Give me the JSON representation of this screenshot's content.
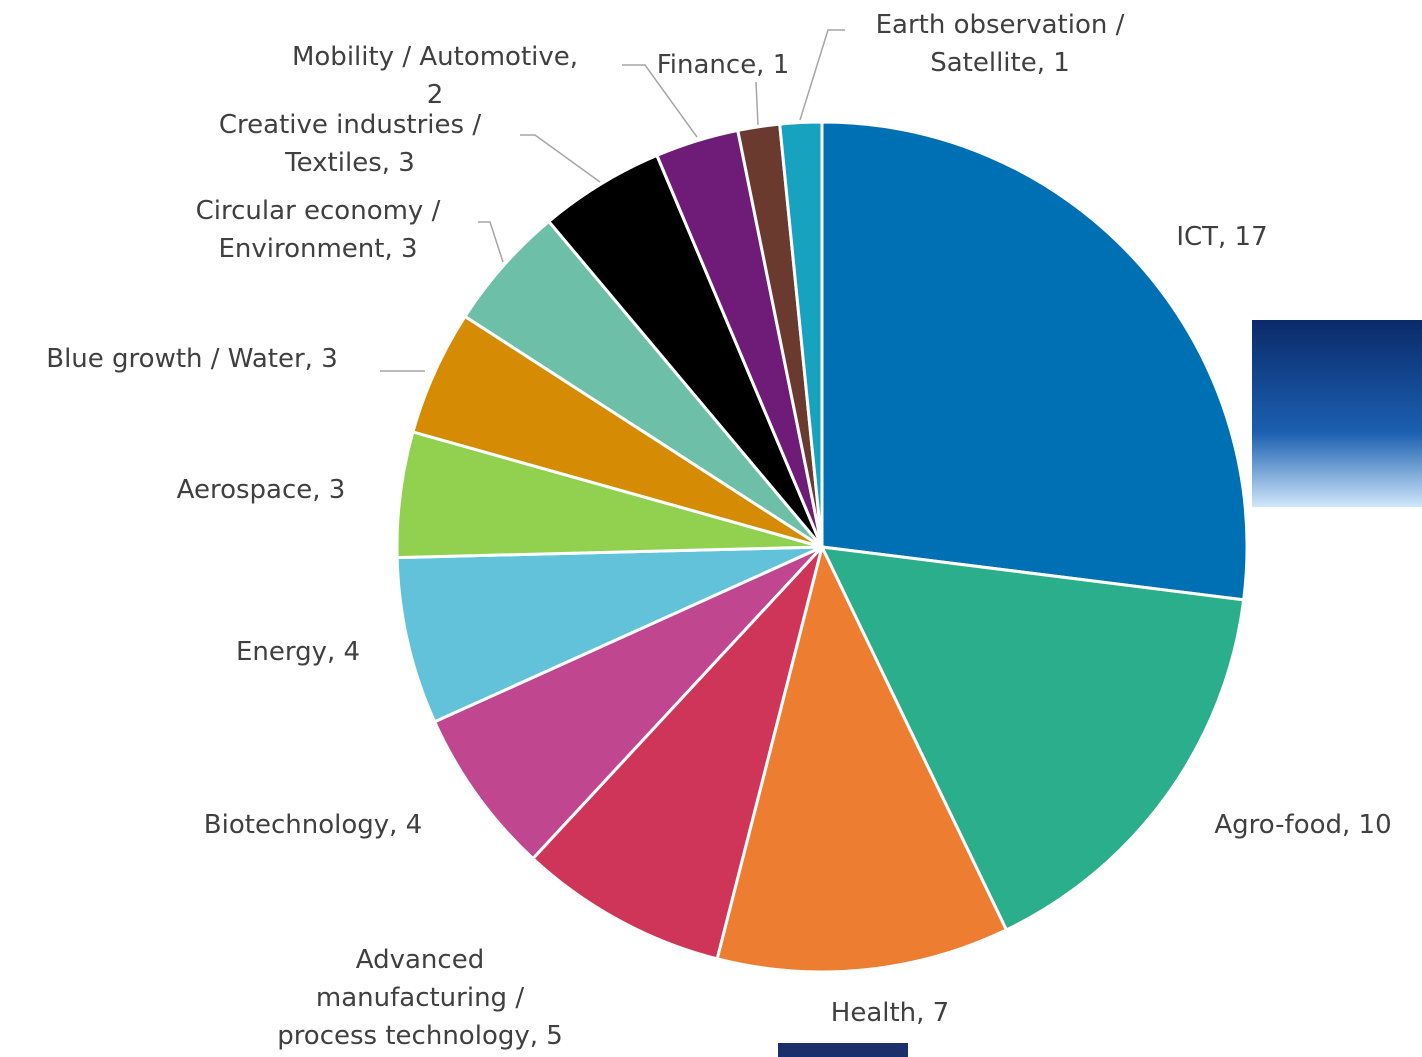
{
  "chart_data": {
    "type": "pie",
    "values": [
      17,
      10,
      7,
      5,
      4,
      4,
      3,
      3,
      3,
      3,
      2,
      1,
      1
    ],
    "value_labels": [
      "ICT, 17",
      "Agro-food, 10",
      "Health, 7",
      "Advanced\nmanufacturing /\nprocess technology, 5",
      "Biotechnology, 4",
      "Energy, 4",
      "Aerospace, 3",
      "Blue growth / Water, 3",
      "Circular economy /\nEnvironment, 3",
      "Creative industries /\nTextiles, 3",
      "Mobility / Automotive,\n2",
      "Finance, 1",
      "Earth observation /\nSatellite, 1"
    ],
    "colors": [
      "#0070b4",
      "#2bae8b",
      "#ed7d31",
      "#cf3558",
      "#c0478f",
      "#62c2da",
      "#92d050",
      "#d68b05",
      "#6dbfa8",
      "#000000",
      "#6f1c78",
      "#6b3a2e",
      "#17a2c0"
    ]
  }
}
